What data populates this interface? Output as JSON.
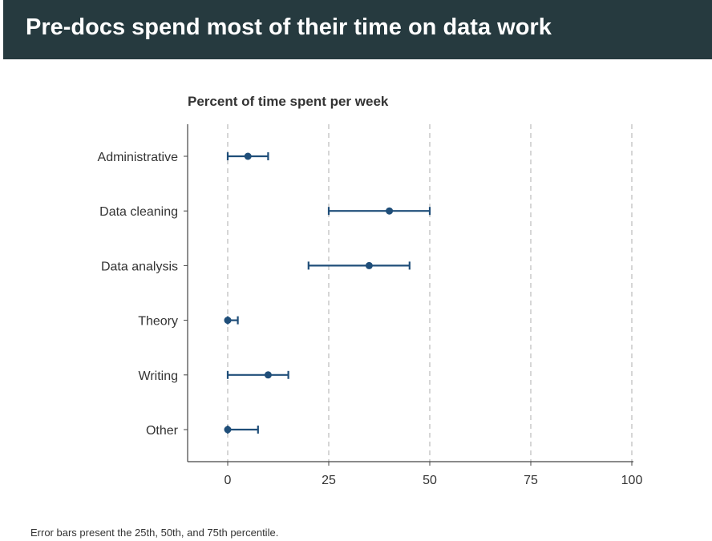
{
  "header": {
    "title": "Pre-docs spend most of their time on data work"
  },
  "footnote": "Error bars present the 25th, 50th, and 75th percentile.",
  "colors": {
    "header_bg": "#263a3f",
    "series": "#1f4e79",
    "grid": "#bbbbbb",
    "axis": "#444444",
    "text": "#333333"
  },
  "chart_data": {
    "type": "scatter",
    "title": "Percent of time spent per week",
    "categories": [
      "Administrative",
      "Data cleaning",
      "Data analysis",
      "Theory",
      "Writing",
      "Other"
    ],
    "series": [
      {
        "points": [
          {
            "category": "Administrative",
            "p25": 0,
            "median": 5,
            "p75": 10
          },
          {
            "category": "Data cleaning",
            "p25": 25,
            "median": 40,
            "p75": 50
          },
          {
            "category": "Data analysis",
            "p25": 20,
            "median": 35,
            "p75": 45
          },
          {
            "category": "Theory",
            "p25": 0,
            "median": 0,
            "p75": 2.5
          },
          {
            "category": "Writing",
            "p25": 0,
            "median": 10,
            "p75": 15
          },
          {
            "category": "Other",
            "p25": 0,
            "median": 0,
            "p75": 7.5
          }
        ]
      }
    ],
    "x_ticks": [
      0,
      25,
      50,
      75,
      100
    ],
    "xlim": [
      -10,
      100
    ],
    "xlabel": "",
    "ylabel": "",
    "grid": "vertical dashed"
  }
}
